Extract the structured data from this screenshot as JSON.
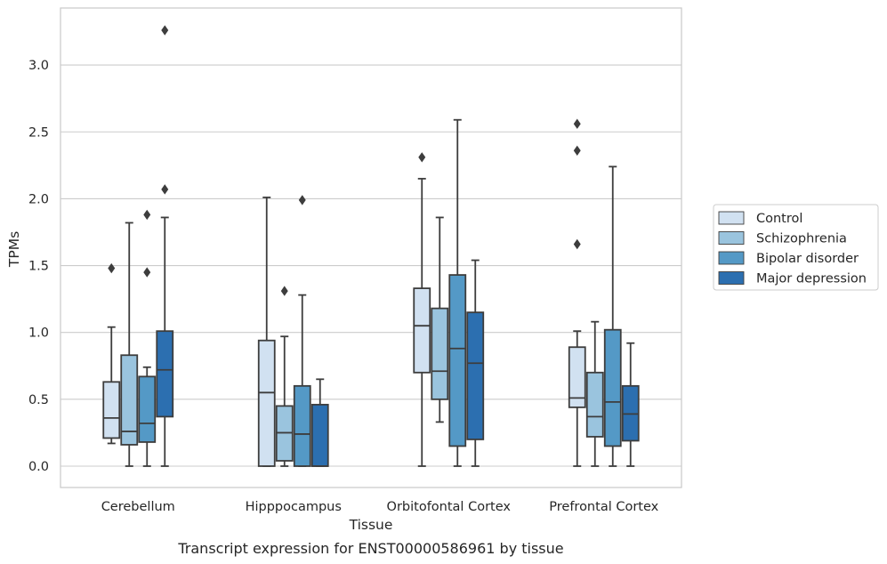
{
  "chart_data": {
    "type": "boxplot",
    "xlabel": "Tissue",
    "ylabel": "TPMs",
    "caption": "Transcript expression for ENST00000586961 by tissue",
    "ylim": [
      -0.16,
      3.43
    ],
    "yticks": [
      "0.0",
      "0.5",
      "1.0",
      "1.5",
      "2.0",
      "2.5",
      "3.0"
    ],
    "grid": "horizontal",
    "legend_position": "right",
    "categories": [
      "Cerebellum",
      "Hipppocampus",
      "Orbitofontal Cortex",
      "Prefrontal Cortex"
    ],
    "series": [
      {
        "name": "Control",
        "color": "#d1e1f1",
        "boxes": [
          {
            "whislo": 0.17,
            "q1": 0.21,
            "med": 0.36,
            "q3": 0.63,
            "whishi": 1.04,
            "fliers": [
              1.48
            ]
          },
          {
            "whislo": 0.0,
            "q1": 0.0,
            "med": 0.55,
            "q3": 0.94,
            "whishi": 2.01,
            "fliers": []
          },
          {
            "whislo": 0.0,
            "q1": 0.7,
            "med": 1.05,
            "q3": 1.33,
            "whishi": 2.15,
            "fliers": [
              2.31
            ]
          },
          {
            "whislo": 0.0,
            "q1": 0.44,
            "med": 0.51,
            "q3": 0.89,
            "whishi": 1.01,
            "fliers": [
              1.66,
              2.36,
              2.56
            ]
          }
        ]
      },
      {
        "name": "Schizophrenia",
        "color": "#9ac4de",
        "boxes": [
          {
            "whislo": 0.0,
            "q1": 0.16,
            "med": 0.26,
            "q3": 0.83,
            "whishi": 1.82,
            "fliers": []
          },
          {
            "whislo": 0.0,
            "q1": 0.04,
            "med": 0.25,
            "q3": 0.45,
            "whishi": 0.97,
            "fliers": [
              1.31
            ]
          },
          {
            "whislo": 0.33,
            "q1": 0.5,
            "med": 0.71,
            "q3": 1.18,
            "whishi": 1.86,
            "fliers": []
          },
          {
            "whislo": 0.0,
            "q1": 0.22,
            "med": 0.37,
            "q3": 0.7,
            "whishi": 1.08,
            "fliers": []
          }
        ]
      },
      {
        "name": "Bipolar disorder",
        "color": "#5499c6",
        "boxes": [
          {
            "whislo": 0.0,
            "q1": 0.18,
            "med": 0.32,
            "q3": 0.67,
            "whishi": 0.74,
            "fliers": [
              1.45,
              1.88
            ]
          },
          {
            "whislo": 0.0,
            "q1": 0.0,
            "med": 0.24,
            "q3": 0.6,
            "whishi": 1.28,
            "fliers": [
              1.99
            ]
          },
          {
            "whislo": 0.0,
            "q1": 0.15,
            "med": 0.88,
            "q3": 1.43,
            "whishi": 2.59,
            "fliers": []
          },
          {
            "whislo": 0.0,
            "q1": 0.15,
            "med": 0.48,
            "q3": 1.02,
            "whishi": 2.24,
            "fliers": []
          }
        ]
      },
      {
        "name": "Major depression",
        "color": "#2c6fb0",
        "boxes": [
          {
            "whislo": 0.0,
            "q1": 0.37,
            "med": 0.72,
            "q3": 1.01,
            "whishi": 1.86,
            "fliers": [
              2.07,
              3.26
            ]
          },
          {
            "whislo": 0.0,
            "q1": 0.0,
            "med": 0.0,
            "q3": 0.46,
            "whishi": 0.65,
            "fliers": []
          },
          {
            "whislo": 0.0,
            "q1": 0.2,
            "med": 0.77,
            "q3": 1.15,
            "whishi": 1.54,
            "fliers": []
          },
          {
            "whislo": 0.0,
            "q1": 0.19,
            "med": 0.39,
            "q3": 0.6,
            "whishi": 0.92,
            "fliers": []
          }
        ]
      }
    ]
  }
}
